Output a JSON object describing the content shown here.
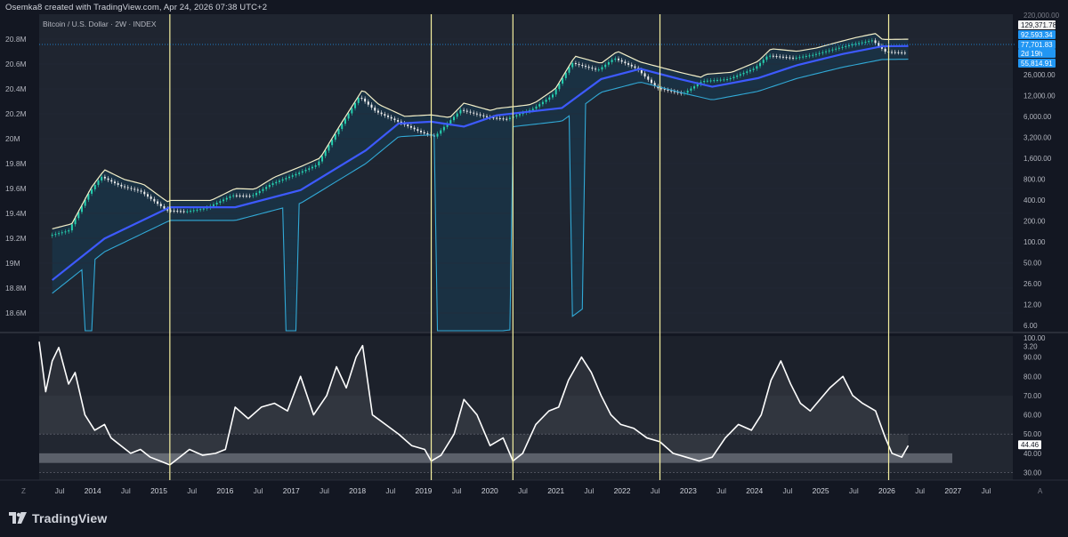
{
  "header": {
    "attribution": "Osemka8 created with TradingView.com, Apr 24, 2026 07:38 UTC+2"
  },
  "footer": {
    "brand": "TradingView"
  },
  "colors": {
    "background": "#131722",
    "price_pane": "#1f2530",
    "rsi_pane": "#1c212b",
    "vertical_markers": "#f5f0a0",
    "ma_line": "#3d5afe",
    "upper_band": "#f5f0c8",
    "lower_band": "#31a9d6",
    "band_fill": "#1a3346",
    "rsi_line": "#ffffff",
    "rsi_zone": "#8a8f99",
    "candle_up": "#26d0b0",
    "candle_down": "#f0f0f0"
  },
  "chart_data": [
    {
      "type": "line",
      "title": "Bitcoin / U.S. Dollar · 2W · INDEX",
      "left_axis_ticks": [
        "20.8M",
        "20.6M",
        "20.4M",
        "20.2M",
        "20M",
        "19.8M",
        "19.6M",
        "19.4M",
        "19.2M",
        "19M",
        "18.8M",
        "18.6M"
      ],
      "right_axis_ticks": [
        "26,000.00",
        "12,000.00",
        "6,000.00",
        "3,200.00",
        "1,600.00",
        "800.00",
        "400.00",
        "200.00",
        "100.00",
        "50.00",
        "26.00",
        "12.00",
        "6.00",
        "3.20"
      ],
      "right_axis_partial_top": "220,000.00",
      "price_labels": [
        {
          "value": "129,371.78",
          "style": "upper"
        },
        {
          "value": "92,593.34",
          "style": "blue"
        },
        {
          "value": "77,701.83",
          "style": "blue"
        },
        {
          "value": "2d 19h",
          "style": "blue"
        },
        {
          "value": "55,814.91",
          "style": "blue"
        }
      ],
      "x_ticks": [
        "Jul",
        "2014",
        "Jul",
        "2015",
        "Jul",
        "2016",
        "Jul",
        "2017",
        "Jul",
        "2018",
        "Jul",
        "2019",
        "Jul",
        "2020",
        "Jul",
        "2021",
        "Jul",
        "2022",
        "Jul",
        "2023",
        "Jul",
        "2024",
        "Jul",
        "2025",
        "Jul",
        "2026",
        "Jul",
        "2027",
        "Jul"
      ],
      "vertical_markers_year": [
        2015.0,
        2019.0,
        2020.25,
        2022.5,
        2026.0
      ],
      "scale": "log",
      "ylim": [
        3.2,
        220000
      ],
      "series": [
        {
          "name": "Price",
          "x": [
            2013.2,
            2013.5,
            2013.8,
            2014.0,
            2014.3,
            2014.6,
            2015.0,
            2015.3,
            2015.6,
            2016.0,
            2016.3,
            2016.6,
            2017.0,
            2017.3,
            2017.6,
            2017.95,
            2018.2,
            2018.5,
            2018.9,
            2019.1,
            2019.5,
            2019.9,
            2020.2,
            2020.6,
            2020.9,
            2021.2,
            2021.6,
            2021.85,
            2022.2,
            2022.5,
            2022.9,
            2023.2,
            2023.6,
            2024.0,
            2024.2,
            2024.6,
            2024.9,
            2025.2,
            2025.5,
            2025.8,
            2026.0,
            2026.3
          ],
          "y": [
            100,
            120,
            450,
            850,
            600,
            500,
            250,
            240,
            270,
            430,
            420,
            650,
            950,
            1300,
            4200,
            15500,
            9000,
            6500,
            4200,
            3600,
            9500,
            7300,
            6800,
            9800,
            16000,
            52000,
            40000,
            62000,
            42000,
            21000,
            17000,
            27000,
            29000,
            43000,
            68000,
            62000,
            70000,
            85000,
            102000,
            118000,
            78000,
            75000
          ]
        },
        {
          "name": "Moving average",
          "x": [
            2013.2,
            2014.0,
            2015.0,
            2016.0,
            2017.0,
            2018.0,
            2018.5,
            2019.0,
            2019.5,
            2020.0,
            2021.0,
            2021.6,
            2022.2,
            2022.8,
            2023.3,
            2024.0,
            2024.6,
            2025.3,
            2025.9,
            2026.3
          ],
          "y": [
            20,
            90,
            280,
            280,
            520,
            2200,
            5800,
            6200,
            5200,
            7800,
            10200,
            29000,
            42000,
            29000,
            22000,
            30000,
            48000,
            72000,
            95000,
            96000
          ]
        }
      ],
      "secondary_values": [
        "44.46"
      ]
    },
    {
      "type": "line",
      "title": "",
      "y_ticks": [
        "100.00",
        "90.00",
        "80.00",
        "70.00",
        "60.00",
        "50.00",
        "40.00",
        "30.00"
      ],
      "current_value": "44.46",
      "ylim": [
        27,
        100
      ],
      "zones": [
        {
          "from": 30,
          "to": 70,
          "label": ""
        },
        {
          "from": 35,
          "to": 40,
          "label": ""
        }
      ],
      "dotted_levels": [
        50,
        30
      ],
      "series": [
        {
          "x": [
            2013.0,
            2013.1,
            2013.2,
            2013.3,
            2013.45,
            2013.55,
            2013.7,
            2013.85,
            2014.0,
            2014.1,
            2014.25,
            2014.4,
            2014.55,
            2014.7,
            2014.85,
            2015.0,
            2015.15,
            2015.3,
            2015.5,
            2015.7,
            2015.85,
            2016.0,
            2016.2,
            2016.4,
            2016.6,
            2016.8,
            2017.0,
            2017.2,
            2017.4,
            2017.55,
            2017.7,
            2017.85,
            2017.95,
            2018.1,
            2018.3,
            2018.5,
            2018.7,
            2018.9,
            2019.0,
            2019.15,
            2019.35,
            2019.5,
            2019.7,
            2019.9,
            2020.1,
            2020.25,
            2020.4,
            2020.6,
            2020.8,
            2020.95,
            2021.1,
            2021.3,
            2021.45,
            2021.6,
            2021.75,
            2021.9,
            2022.1,
            2022.3,
            2022.5,
            2022.7,
            2022.9,
            2023.1,
            2023.3,
            2023.5,
            2023.7,
            2023.9,
            2024.05,
            2024.2,
            2024.35,
            2024.5,
            2024.65,
            2024.8,
            2024.95,
            2025.1,
            2025.3,
            2025.45,
            2025.6,
            2025.8,
            2025.95,
            2026.05,
            2026.2,
            2026.3
          ],
          "y": [
            98,
            72,
            88,
            95,
            76,
            82,
            60,
            52,
            55,
            48,
            44,
            40,
            42,
            38,
            36,
            34,
            38,
            42,
            39,
            40,
            42,
            64,
            58,
            64,
            66,
            62,
            80,
            60,
            70,
            85,
            74,
            90,
            96,
            60,
            55,
            50,
            44,
            42,
            36,
            39,
            50,
            68,
            60,
            44,
            48,
            36,
            40,
            55,
            62,
            64,
            78,
            90,
            82,
            70,
            60,
            55,
            53,
            48,
            46,
            40,
            38,
            36,
            38,
            48,
            55,
            52,
            60,
            78,
            88,
            76,
            66,
            62,
            68,
            74,
            80,
            70,
            66,
            62,
            48,
            40,
            38,
            44
          ]
        }
      ]
    }
  ]
}
